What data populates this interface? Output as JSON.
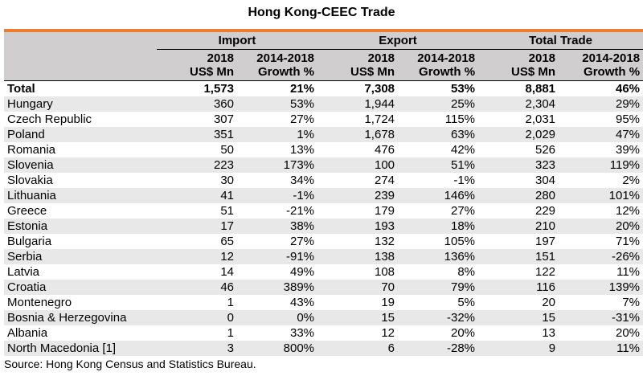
{
  "title": "Hong Kong-CEEC Trade",
  "groups": [
    "Import",
    "Export",
    "Total Trade"
  ],
  "subheaders": [
    {
      "line1": "2018",
      "line2": "US$ Mn"
    },
    {
      "line1": "2014-2018",
      "line2": "Growth %"
    },
    {
      "line1": "2018",
      "line2": "US$ Mn"
    },
    {
      "line1": "2014-2018",
      "line2": "Growth %"
    },
    {
      "line1": "2018",
      "line2": "US$ Mn"
    },
    {
      "line1": "2014-2018",
      "line2": "Growth %"
    }
  ],
  "rows": [
    [
      "Total",
      "1,573",
      "21%",
      "7,308",
      "53%",
      "8,881",
      "46%"
    ],
    [
      "Hungary",
      "360",
      "53%",
      "1,944",
      "25%",
      "2,304",
      "29%"
    ],
    [
      "Czech Republic",
      "307",
      "27%",
      "1,724",
      "115%",
      "2,031",
      "95%"
    ],
    [
      "Poland",
      "351",
      "1%",
      "1,678",
      "63%",
      "2,029",
      "47%"
    ],
    [
      "Romania",
      "50",
      "13%",
      "476",
      "42%",
      "526",
      "39%"
    ],
    [
      "Slovenia",
      "223",
      "173%",
      "100",
      "51%",
      "323",
      "119%"
    ],
    [
      "Slovakia",
      "30",
      "34%",
      "274",
      "-1%",
      "304",
      "2%"
    ],
    [
      "Lithuania",
      "41",
      "-1%",
      "239",
      "146%",
      "280",
      "101%"
    ],
    [
      "Greece",
      "51",
      "-21%",
      "179",
      "27%",
      "229",
      "12%"
    ],
    [
      "Estonia",
      "17",
      "38%",
      "193",
      "18%",
      "210",
      "20%"
    ],
    [
      "Bulgaria",
      "65",
      "27%",
      "132",
      "105%",
      "197",
      "71%"
    ],
    [
      "Serbia",
      "12",
      "-91%",
      "138",
      "136%",
      "151",
      "-26%"
    ],
    [
      "Latvia",
      "14",
      "49%",
      "108",
      "8%",
      "122",
      "11%"
    ],
    [
      "Croatia",
      "46",
      "389%",
      "70",
      "79%",
      "116",
      "139%"
    ],
    [
      "Montenegro",
      "1",
      "43%",
      "19",
      "5%",
      "20",
      "7%"
    ],
    [
      "Bosnia & Herzegovina",
      "0",
      "0%",
      "15",
      "-32%",
      "15",
      "-31%"
    ],
    [
      "Albania",
      "1",
      "33%",
      "12",
      "20%",
      "13",
      "20%"
    ],
    [
      "North Macedonia [1]",
      "3",
      "800%",
      "6",
      "-28%",
      "9",
      "11%"
    ]
  ],
  "source": "Source: Hong Kong Census and Statistics Bureau.",
  "colors": {
    "accent_rule": "#ee7d31",
    "header_bg": "#d0cece",
    "stripe_bg": "#e8e8e8"
  }
}
